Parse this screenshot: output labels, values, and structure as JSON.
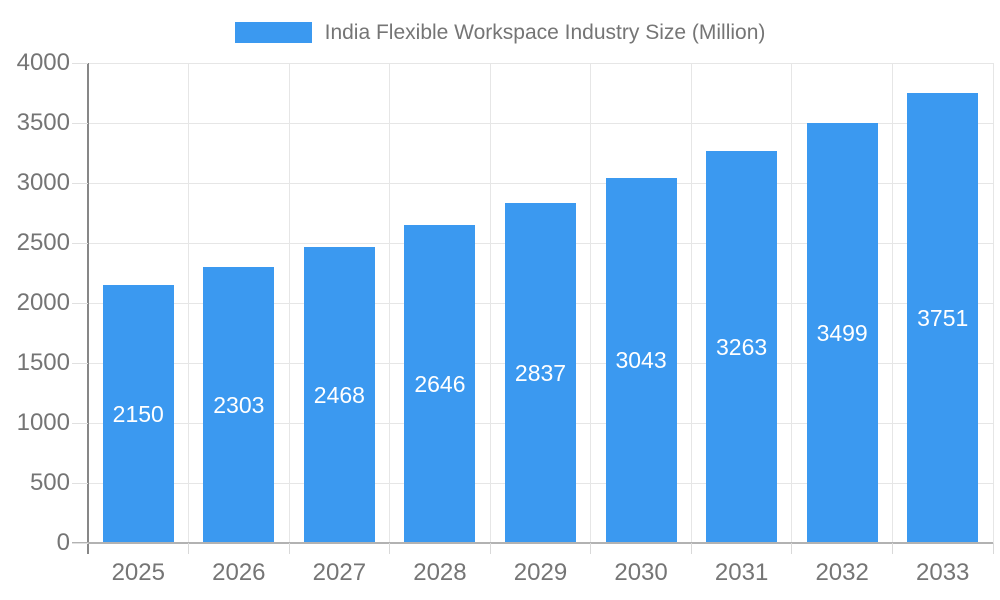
{
  "legend": {
    "label": "India Flexible Workspace Industry Size (Million)"
  },
  "colors": {
    "bar": "#3B99F0",
    "axis_text": "#757575",
    "bar_label_text": "#FFFFFF",
    "gridline": "#E6E6E6",
    "y_axis_line": "#878787",
    "x_axis_line": "#B2B2B2",
    "background": "#FFFFFF"
  },
  "chart_data": {
    "type": "bar",
    "title": "India Flexible Workspace Industry Size (Million)",
    "series_name": "India Flexible Workspace Industry Size (Million)",
    "categories": [
      "2025",
      "2026",
      "2027",
      "2028",
      "2029",
      "2030",
      "2031",
      "2032",
      "2033"
    ],
    "values": [
      2150,
      2303,
      2468,
      2646,
      2837,
      3043,
      3263,
      3499,
      3751
    ],
    "xlabel": "",
    "ylabel": "",
    "ylim": [
      0,
      4000
    ],
    "y_ticks": [
      0,
      500,
      1000,
      1500,
      2000,
      2500,
      3000,
      3500,
      4000
    ],
    "grid": true,
    "legend_position": "top",
    "bar_labels": "inside-center",
    "bar_color": "#3B99F0"
  }
}
